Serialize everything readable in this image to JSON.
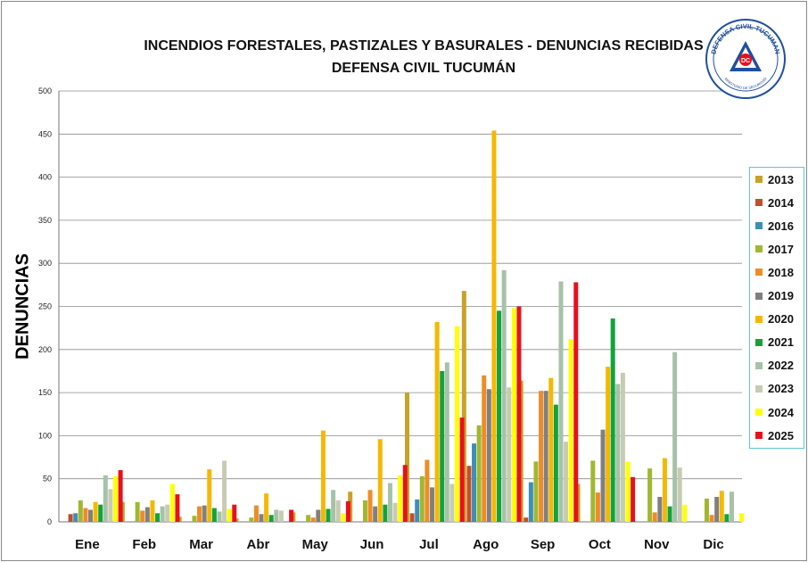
{
  "title_line1": "INCENDIOS FORESTALES, PASTIZALES Y BASURALES  -  DENUNCIAS RECIBIDAS",
  "title_line2": "DEFENSA CIVIL TUCUMÁN",
  "logo": {
    "ring_text": "DEFENSA CIVIL TUCUMAN",
    "inner_text": "DC",
    "bottom_text": "MINISTERIO DE SEGURIDAD"
  },
  "chart_data": {
    "type": "bar",
    "title": "INCENDIOS FORESTALES, PASTIZALES Y BASURALES  -  DENUNCIAS RECIBIDAS - DEFENSA CIVIL TUCUMÁN",
    "xlabel": "",
    "ylabel": "DENUNCIAS",
    "ylim": [
      0,
      500
    ],
    "yticks": [
      0,
      50,
      100,
      150,
      200,
      250,
      300,
      350,
      400,
      450,
      500
    ],
    "grid": true,
    "legend_position": "right",
    "categories": [
      "Ene",
      "Feb",
      "Mar",
      "Abr",
      "May",
      "Jun",
      "Jul",
      "Ago",
      "Sep",
      "Oct",
      "Nov",
      "Dic"
    ],
    "series": [
      {
        "name": "2013",
        "color": "#c9a227",
        "values": [
          0,
          23,
          6,
          4,
          11,
          35,
          150,
          268,
          164,
          44,
          0,
          0
        ]
      },
      {
        "name": "2014",
        "color": "#c0502a",
        "values": [
          9,
          0,
          0,
          0,
          0,
          0,
          10,
          65,
          5,
          0,
          0,
          0
        ]
      },
      {
        "name": "2016",
        "color": "#3d8fb8",
        "values": [
          10,
          0,
          0,
          0,
          0,
          0,
          26,
          91,
          46,
          0,
          0,
          0
        ]
      },
      {
        "name": "2017",
        "color": "#a0b830",
        "values": [
          25,
          23,
          7,
          5,
          8,
          25,
          53,
          112,
          70,
          71,
          62,
          27
        ]
      },
      {
        "name": "2018",
        "color": "#ee8c26",
        "values": [
          16,
          13,
          18,
          19,
          5,
          37,
          72,
          170,
          152,
          34,
          11,
          8
        ]
      },
      {
        "name": "2019",
        "color": "#808080",
        "values": [
          14,
          17,
          19,
          9,
          14,
          18,
          40,
          154,
          152,
          107,
          29,
          29
        ]
      },
      {
        "name": "2020",
        "color": "#f5b800",
        "values": [
          23,
          25,
          61,
          33,
          106,
          96,
          232,
          454,
          167,
          180,
          74,
          36
        ]
      },
      {
        "name": "2021",
        "color": "#12a33a",
        "values": [
          20,
          10,
          16,
          8,
          15,
          20,
          175,
          245,
          136,
          236,
          18,
          9
        ]
      },
      {
        "name": "2022",
        "color": "#a6c2a8",
        "values": [
          54,
          18,
          12,
          14,
          37,
          45,
          185,
          292,
          279,
          160,
          197,
          35
        ]
      },
      {
        "name": "2023",
        "color": "#c8cbb4",
        "values": [
          38,
          20,
          71,
          13,
          25,
          22,
          44,
          156,
          93,
          173,
          63,
          0
        ]
      },
      {
        "name": "2024",
        "color": "#ffff00",
        "values": [
          53,
          44,
          15,
          0,
          10,
          54,
          227,
          248,
          212,
          70,
          20,
          10
        ]
      },
      {
        "name": "2025",
        "color": "#e8101c",
        "values": [
          60,
          32,
          20,
          14,
          24,
          66,
          121,
          250,
          278,
          52,
          0,
          0
        ]
      }
    ]
  }
}
